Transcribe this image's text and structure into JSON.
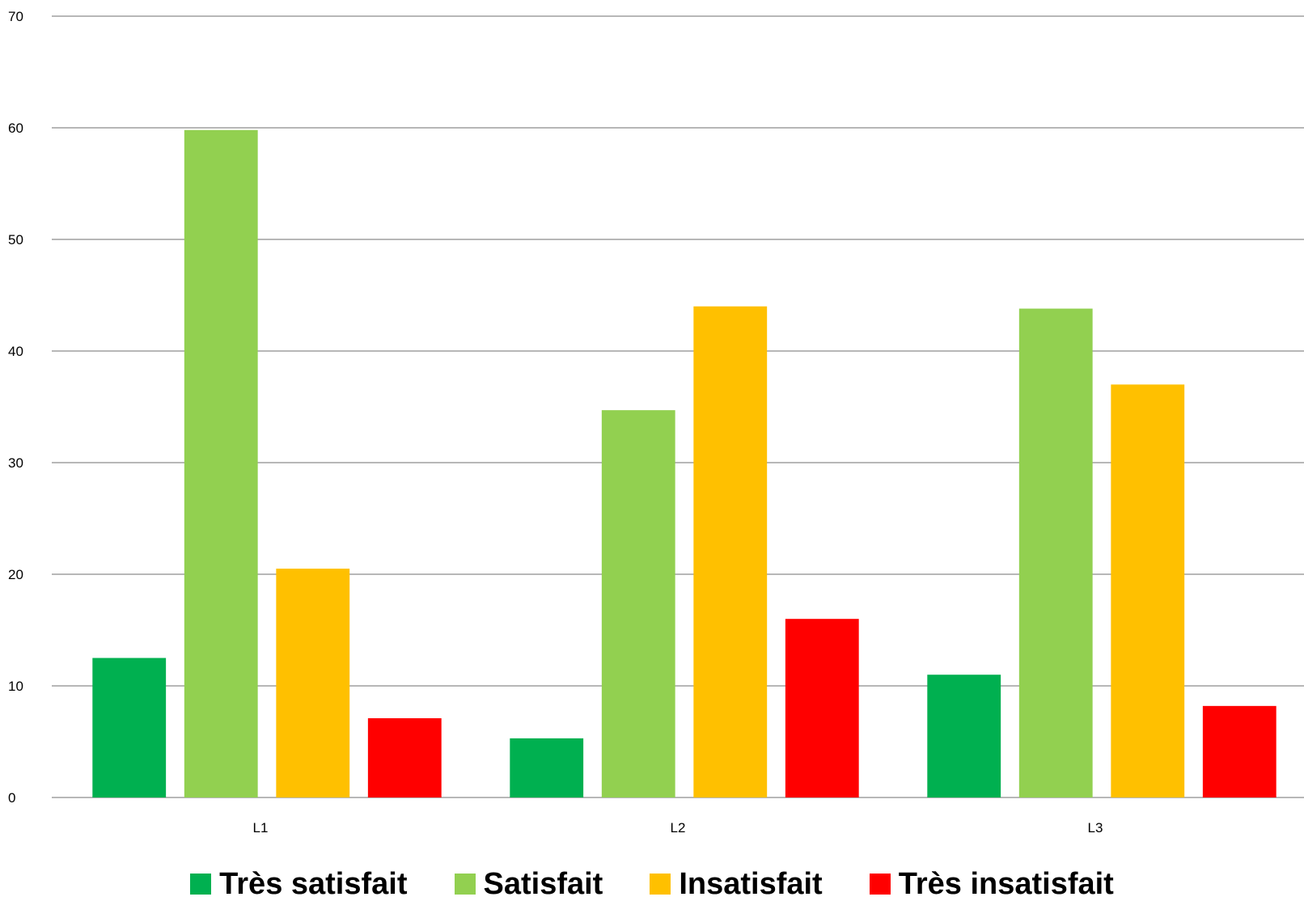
{
  "chart_data": {
    "type": "bar",
    "categories": [
      "L1",
      "L2",
      "L3"
    ],
    "series": [
      {
        "name": "Très satisfait",
        "color": "#00B050",
        "values": [
          12.5,
          5.3,
          11.0
        ]
      },
      {
        "name": "Satisfait",
        "color": "#92D050",
        "values": [
          59.8,
          34.7,
          43.8
        ]
      },
      {
        "name": "Insatisfait",
        "color": "#FFC000",
        "values": [
          20.5,
          44.0,
          37.0
        ]
      },
      {
        "name": "Très insatisfait",
        "color": "#FF0000",
        "values": [
          7.1,
          16.0,
          8.2
        ]
      }
    ],
    "ylim": [
      0,
      70
    ],
    "yticks": [
      "0",
      "10",
      "20",
      "30",
      "40",
      "50",
      "60",
      "70"
    ],
    "grid": true,
    "legend_position": "bottom"
  }
}
